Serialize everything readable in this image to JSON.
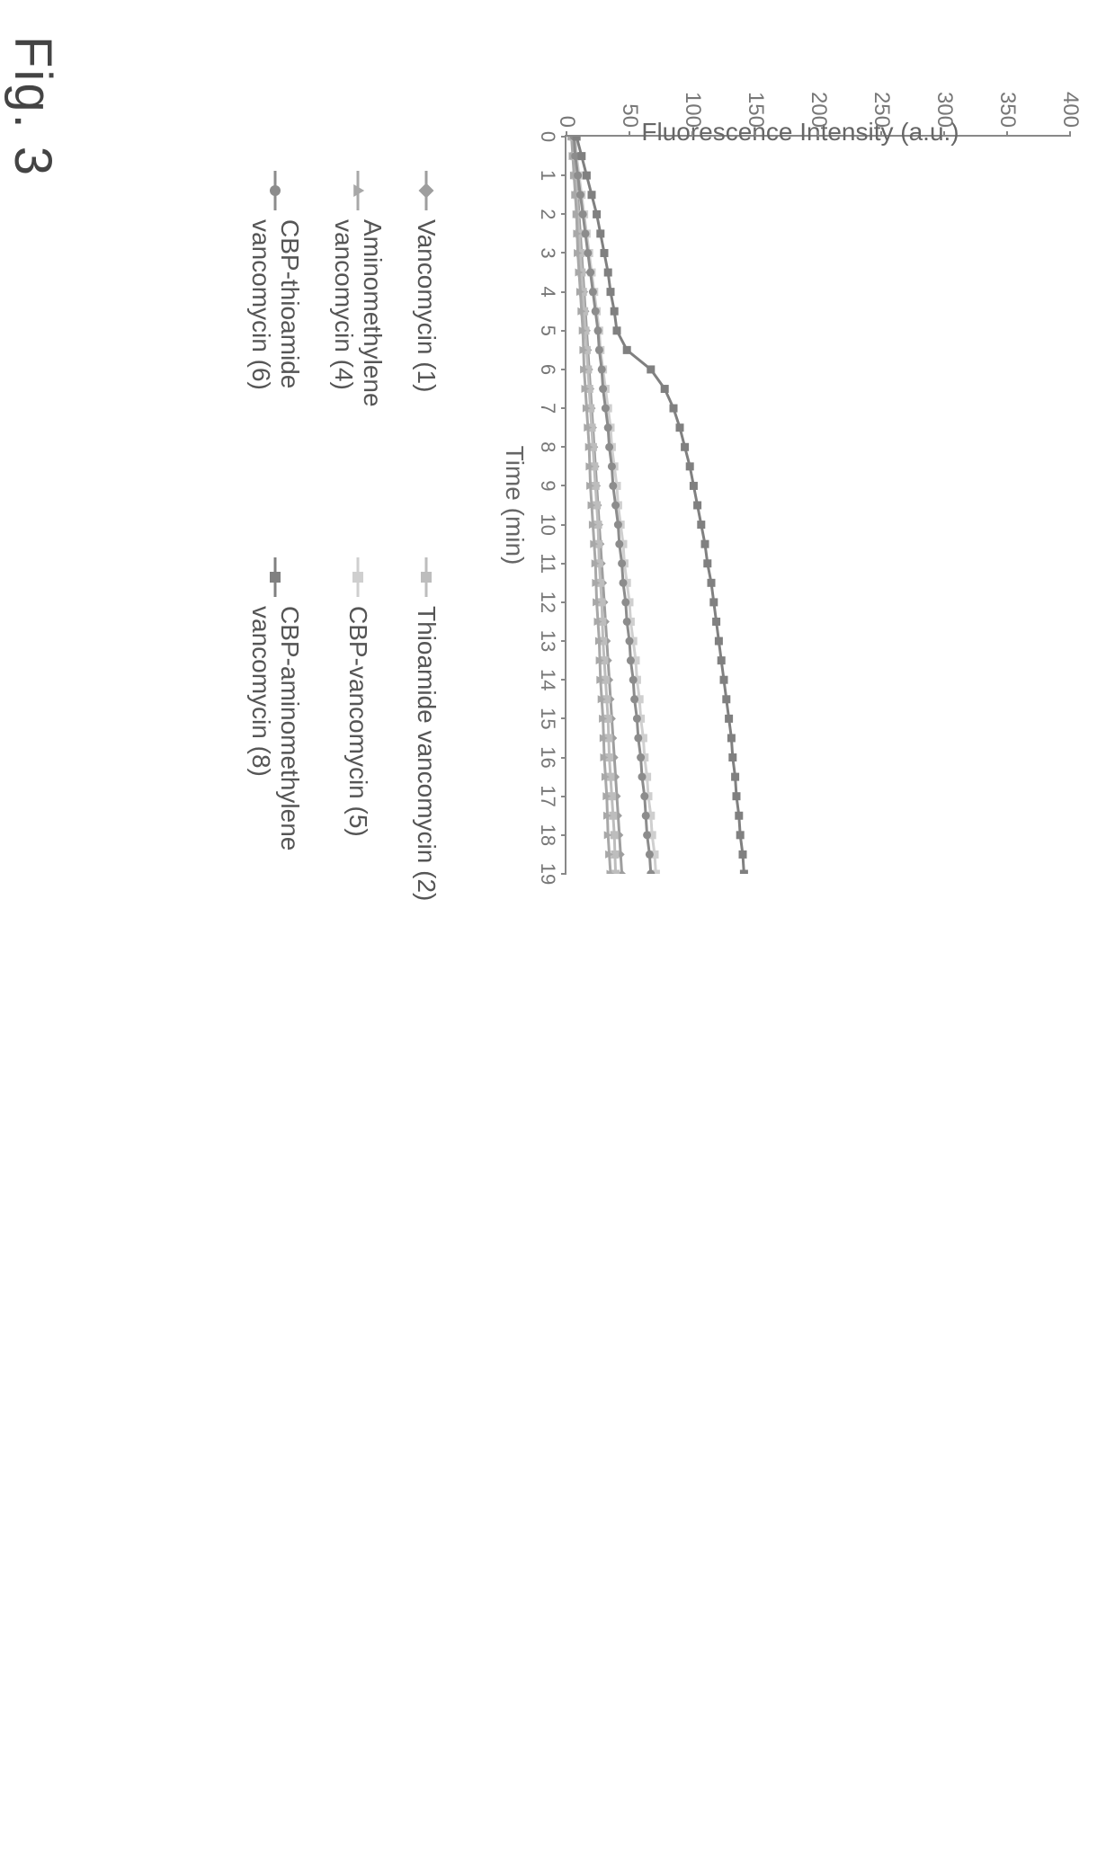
{
  "figure_label": "Fig. 3",
  "chart": {
    "type": "line",
    "background_color": "#ffffff",
    "axis_color": "#888888",
    "text_color": "#666666",
    "title_fontsize": 28,
    "label_fontsize": 28,
    "tick_fontsize": 24,
    "xlabel": "Time (min)",
    "ylabel": "Fluorescence Intensity (a.u.)",
    "xlim": [
      0,
      19
    ],
    "ylim": [
      0,
      400
    ],
    "xtick_step": 1,
    "ytick_step": 50,
    "x_ticks": [
      0,
      1,
      2,
      3,
      4,
      5,
      6,
      7,
      8,
      9,
      10,
      11,
      12,
      13,
      14,
      15,
      16,
      17,
      18,
      19
    ],
    "y_ticks": [
      0,
      50,
      100,
      150,
      200,
      250,
      300,
      350,
      400
    ],
    "marker_size": 9,
    "line_width": 3,
    "series": [
      {
        "name": "Vancomycin (1)",
        "color": "#9e9e9e",
        "marker": "diamond",
        "x": [
          0,
          0.5,
          1,
          1.5,
          2,
          2.5,
          3,
          3.5,
          4,
          4.5,
          5,
          5.5,
          6,
          6.5,
          7,
          7.5,
          8,
          8.5,
          9,
          9.5,
          10,
          10.5,
          11,
          11.5,
          12,
          12.5,
          13,
          13.5,
          14,
          14.5,
          15,
          15.5,
          16,
          16.5,
          17,
          17.5,
          18,
          18.5,
          19,
          19.4
        ],
        "y": [
          6,
          7,
          8,
          9,
          10,
          11,
          12,
          13,
          14,
          15,
          16,
          17,
          18,
          19,
          20,
          21,
          22,
          23,
          24,
          25,
          26,
          27,
          28,
          29,
          30,
          31,
          32,
          33,
          34,
          35,
          36,
          37,
          38,
          39,
          40,
          41,
          42,
          43,
          44,
          45
        ]
      },
      {
        "name": "Thioamide vancomycin (2)",
        "color": "#bdbdbd",
        "marker": "square",
        "x": [
          0,
          0.5,
          1,
          1.5,
          2,
          2.5,
          3,
          3.5,
          4,
          4.5,
          5,
          5.5,
          6,
          6.5,
          7,
          7.5,
          8,
          8.5,
          9,
          9.5,
          10,
          10.5,
          11,
          11.5,
          12,
          12.5,
          13,
          13.5,
          14,
          14.5,
          15,
          15.5,
          16,
          16.5,
          17,
          17.5,
          18,
          18.5,
          19,
          19.4
        ],
        "y": [
          5,
          6,
          7,
          8,
          9,
          10,
          11,
          12,
          13,
          14,
          15,
          16,
          17,
          18,
          19,
          20,
          21,
          22,
          23,
          24,
          25,
          25.5,
          26,
          27,
          28,
          28.5,
          29,
          30,
          31,
          32,
          33,
          33.5,
          34,
          35,
          36,
          37,
          38,
          38.5,
          39,
          40
        ]
      },
      {
        "name": "Aminomethylene vancomycin (4)",
        "color": "#a8a8a8",
        "marker": "triangle",
        "x": [
          0,
          0.5,
          1,
          1.5,
          2,
          2.5,
          3,
          3.5,
          4,
          4.5,
          5,
          5.5,
          6,
          6.5,
          7,
          7.5,
          8,
          8.5,
          9,
          9.5,
          10,
          10.5,
          11,
          11.5,
          12,
          12.5,
          13,
          13.5,
          14,
          14.5,
          15,
          15.5,
          16,
          16.5,
          17,
          17.5,
          18,
          18.5,
          19,
          19.4
        ],
        "y": [
          4,
          5,
          6,
          7,
          8,
          8.5,
          9,
          10,
          11,
          12,
          13,
          13.5,
          14,
          15,
          16,
          17,
          18,
          18.5,
          19,
          20,
          21,
          22,
          23,
          23.5,
          24,
          25,
          26,
          26.5,
          27,
          28,
          29,
          29.5,
          30,
          31,
          32,
          32.5,
          33,
          34,
          35,
          36
        ]
      },
      {
        "name": "CBP-vancomycin (5)",
        "color": "#cfcfcf",
        "marker": "square",
        "x": [
          0,
          0.5,
          1,
          1.5,
          2,
          2.5,
          3,
          3.5,
          4,
          4.5,
          5,
          5.5,
          6,
          6.5,
          7,
          7.5,
          8,
          8.5,
          9,
          9.5,
          10,
          10.5,
          11,
          11.5,
          12,
          12.5,
          13,
          13.5,
          14,
          14.5,
          15,
          15.5,
          16,
          16.5,
          17,
          17.5,
          18,
          18.5,
          19,
          19.4
        ],
        "y": [
          7,
          8,
          10,
          12,
          14,
          16,
          18,
          20,
          22,
          24,
          26,
          27,
          29,
          31,
          33,
          35,
          36,
          38,
          40,
          41,
          43,
          45,
          46,
          48,
          50,
          51,
          53,
          55,
          56,
          58,
          59,
          61,
          62,
          64,
          65,
          67,
          68,
          70,
          71,
          72
        ]
      },
      {
        "name": "CBP-thioamide vancomycin (6)",
        "color": "#8c8c8c",
        "marker": "circle",
        "x": [
          0,
          0.5,
          1,
          1.5,
          2,
          2.5,
          3,
          3.5,
          4,
          4.5,
          5,
          5.5,
          6,
          6.5,
          7,
          7.5,
          8,
          8.5,
          9,
          9.5,
          10,
          10.5,
          11,
          11.5,
          12,
          12.5,
          13,
          13.5,
          14,
          14.5,
          15,
          15.5,
          16,
          16.5,
          17,
          17.5,
          18,
          18.5,
          19,
          19.4
        ],
        "y": [
          6,
          7,
          9,
          11,
          13,
          15,
          17,
          19,
          21,
          23,
          25,
          26,
          28,
          29,
          31,
          33,
          34,
          36,
          37,
          39,
          41,
          42,
          44,
          45,
          47,
          48,
          50,
          51,
          53,
          54,
          56,
          57,
          59,
          60,
          62,
          63,
          64,
          66,
          67,
          68
        ]
      },
      {
        "name": "CBP-aminomethylene vancomycin (8)",
        "color": "#808080",
        "marker": "square",
        "x": [
          0,
          0.5,
          1,
          1.5,
          2,
          2.5,
          3,
          3.5,
          4,
          4.5,
          5,
          5.5,
          6,
          6.5,
          7,
          7.5,
          8,
          8.5,
          9,
          9.5,
          10,
          10.5,
          11,
          11.5,
          12,
          12.5,
          13,
          13.5,
          14,
          14.5,
          15,
          15.5,
          16,
          16.5,
          17,
          17.5,
          18,
          18.5,
          19,
          19.4
        ],
        "y": [
          8,
          12,
          16,
          20,
          24,
          27,
          30,
          33,
          35,
          38,
          40,
          48,
          67,
          78,
          85,
          90,
          94,
          98,
          101,
          104,
          107,
          110,
          112,
          115,
          117,
          119,
          121,
          123,
          125,
          127,
          129,
          131,
          132,
          134,
          135,
          137,
          138,
          140,
          141,
          142
        ]
      }
    ],
    "legend_layout": {
      "columns": 2,
      "order": [
        "Vancomycin (1)",
        "Thioamide vancomycin (2)",
        "Aminomethylene vancomycin (4)",
        "CBP-vancomycin (5)",
        "CBP-thioamide vancomycin (6)",
        "CBP-aminomethylene vancomycin (8)"
      ]
    }
  }
}
